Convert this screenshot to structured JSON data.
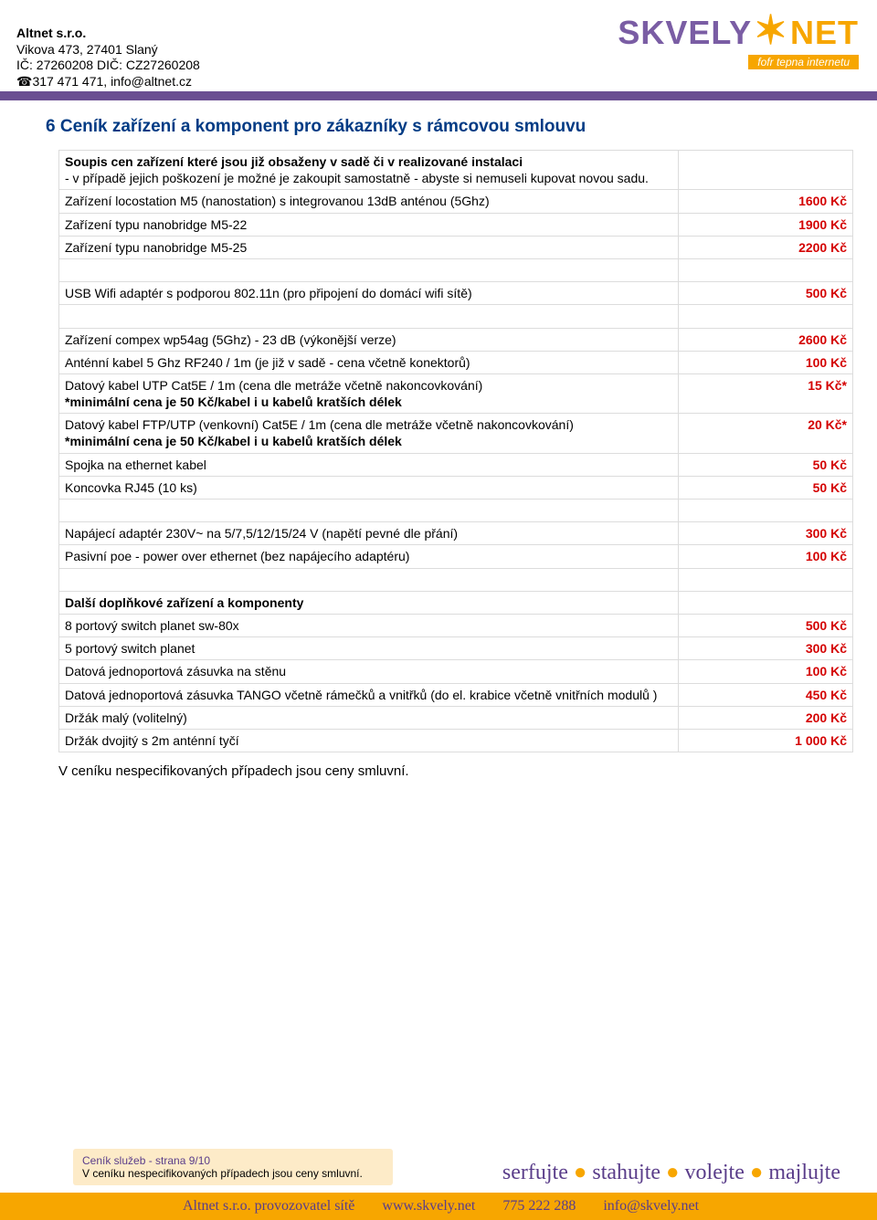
{
  "company": {
    "name": "Altnet s.r.o.",
    "address": "Vikova 473, 27401 Slaný",
    "ids": "IČ: 27260208 DIČ: CZ27260208",
    "contact": "☎317 471 471, info@altnet.cz"
  },
  "logo": {
    "brand1": "SKVELY",
    "brand2": "NET",
    "tagline": "fofr tepna internetu"
  },
  "title": "6 Ceník zařízení a komponent pro zákazníky s rámcovou smlouvu",
  "rows": [
    {
      "desc": "Soupis cen zařízení které jsou již obsaženy v sadě či v realizované instalaci\n- v případě jejich poškození je možné je zakoupit samostatně - abyste si nemuseli kupovat novou sadu.",
      "price": "",
      "bold": true,
      "sub": true
    },
    {
      "desc": "Zařízení locostation M5 (nanostation) s integrovanou 13dB anténou (5Ghz)",
      "price": "1600 Kč"
    },
    {
      "desc": "Zařízení typu nanobridge M5-22",
      "price": "1900 Kč"
    },
    {
      "desc": "Zařízení typu nanobridge M5-25",
      "price": "2200 Kč"
    },
    {
      "spacer": true
    },
    {
      "desc": "USB Wifi adaptér s podporou 802.11n (pro připojení do domácí wifi sítě)",
      "price": "500 Kč"
    },
    {
      "spacer": true
    },
    {
      "desc": "Zařízení compex wp54ag  (5Ghz) - 23 dB (výkonější verze)",
      "price": "2600 Kč"
    },
    {
      "desc": "Anténní kabel 5 Ghz RF240 / 1m (je již v sadě - cena včetně konektorů)",
      "price": "100 Kč"
    },
    {
      "desc": "Datový kabel UTP Cat5E / 1m (cena dle metráže včetně nakoncovkování)\n *minimální cena je 50 Kč/kabel i u kabelů kratších délek",
      "price": "15 Kč*",
      "boldsuffix": true
    },
    {
      "desc": "Datový kabel FTP/UTP (venkovní) Cat5E / 1m (cena dle metráže včetně nakoncovkování)\n *minimální cena je 50 Kč/kabel i u kabelů kratších délek",
      "price": "20 Kč*",
      "boldsuffix": true
    },
    {
      "desc": "Spojka na ethernet kabel",
      "price": "50 Kč"
    },
    {
      "desc": "Koncovka RJ45 (10 ks)",
      "price": "50 Kč"
    },
    {
      "spacer": true
    },
    {
      "desc": "Napájecí adaptér 230V~ na 5/7,5/12/15/24 V (napětí pevné dle přání)",
      "price": "300 Kč"
    },
    {
      "desc": "Pasivní poe - power over ethernet (bez napájecího adaptéru)",
      "price": "100 Kč"
    },
    {
      "spacer": true
    },
    {
      "desc": "Další doplňkové zařízení a komponenty",
      "price": "",
      "bold": true
    },
    {
      "desc": "8 portový switch planet sw-80x",
      "price": "500 Kč"
    },
    {
      "desc": "5 portový switch planet",
      "price": "300 Kč"
    },
    {
      "desc": "Datová jednoportová zásuvka na stěnu",
      "price": "100 Kč"
    },
    {
      "desc": "Datová jednoportová zásuvka TANGO včetně rámečků a vnitřků  (do el. krabice včetně vnitřních modulů )",
      "price": "450 Kč"
    },
    {
      "desc": "Držák malý (volitelný)",
      "price": "200 Kč"
    },
    {
      "desc": "Držák dvojitý s 2m anténní tyčí",
      "price": "1 000 Kč"
    }
  ],
  "footnote": "V ceníku nespecifikovaných případech jsou ceny smluvní.",
  "footer": {
    "page": "Ceník služeb - strana 9/10",
    "note": "V ceníku nespecifikovaných případech jsou ceny smluvní.",
    "s1": "serfujte",
    "s2": "stahujte",
    "s3": "volejte",
    "s4": "majlujte",
    "b1": "Altnet s.r.o. provozovatel sítě",
    "b2": "www.skvely.net",
    "b3": "775 222 288",
    "b4": "info@skvely.net"
  }
}
